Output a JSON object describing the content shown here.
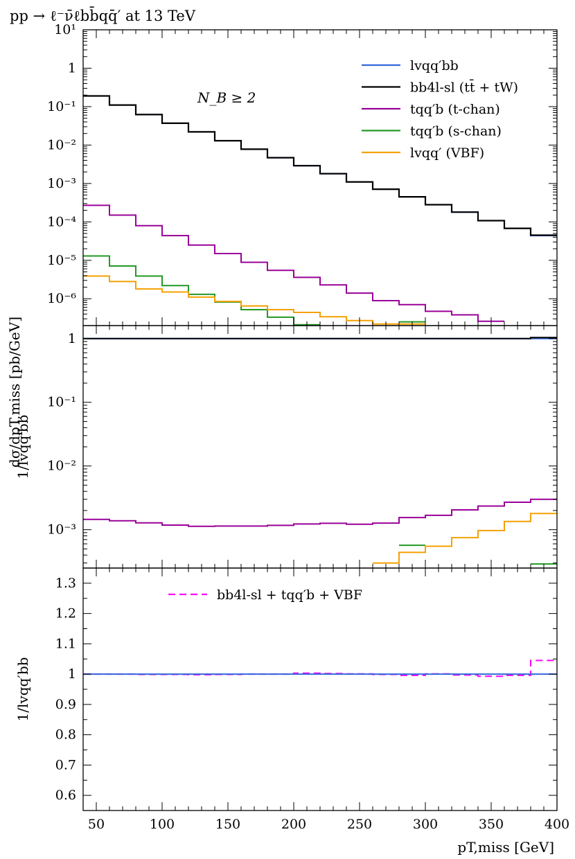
{
  "chart_data": [
    {
      "type": "line",
      "panel": "main",
      "title": "pp → ℓ⁻ν̄ℓbb̄qq̄′ at 13 TeV",
      "ylabel": "dσ/dpT,miss [pb/GeV]",
      "xlabel": "",
      "y_scale": "log",
      "ylim": [
        2e-07,
        10
      ],
      "xlim": [
        40,
        400
      ],
      "y_tick_labels": [
        "10¹",
        "1",
        "10⁻¹",
        "10⁻²",
        "10⁻³",
        "10⁻⁴",
        "10⁻⁵",
        "10⁻⁶"
      ],
      "y_tick_values": [
        10,
        1,
        0.1,
        0.01,
        0.001,
        0.0001,
        1e-05,
        1e-06
      ],
      "annotation": "N_B ≥ 2",
      "legend_position": "top-right",
      "bin_edges": [
        40,
        60,
        80,
        100,
        120,
        140,
        160,
        180,
        200,
        220,
        240,
        260,
        280,
        300,
        320,
        340,
        360,
        380,
        400
      ],
      "series": [
        {
          "name": "lvqq′bb",
          "color": "#3366dd",
          "values": [
            0.19,
            0.11,
            0.062,
            0.037,
            0.022,
            0.013,
            0.0078,
            0.0047,
            0.0029,
            0.0018,
            0.0011,
            0.00071,
            0.00045,
            0.00028,
            0.00018,
            0.000108,
            6.8e-05,
            4.4e-05
          ]
        },
        {
          "name": "bb4l-sl (tt̄ + tW)",
          "color": "#000000",
          "values": [
            0.19,
            0.11,
            0.062,
            0.037,
            0.022,
            0.013,
            0.0078,
            0.0047,
            0.0029,
            0.0018,
            0.0011,
            0.00071,
            0.00045,
            0.00028,
            0.00018,
            0.000108,
            6.8e-05,
            4.5e-05
          ]
        },
        {
          "name": "tqq′b (t-chan)",
          "color": "#990099",
          "values": [
            0.00027,
            0.00015,
            8e-05,
            4.4e-05,
            2.5e-05,
            1.5e-05,
            8.9e-06,
            5.5e-06,
            3.6e-06,
            2.3e-06,
            1.4e-06,
            8.9e-07,
            7e-07,
            4.7e-07,
            3.8e-07,
            2.6e-07,
            1.8e-07,
            null
          ]
        },
        {
          "name": "tqq′b (s-chan)",
          "color": "#229922",
          "values": [
            1.3e-05,
            7.1e-06,
            3.9e-06,
            2.2e-06,
            1.3e-06,
            8.2e-07,
            5.2e-07,
            3.3e-07,
            2.1e-07,
            null,
            null,
            null,
            2.5e-07,
            null,
            null,
            null,
            null,
            null
          ]
        },
        {
          "name": "lvqq′ (VBF)",
          "color": "#f5a000",
          "values": [
            3.9e-06,
            2.8e-06,
            1.8e-06,
            1.5e-06,
            1.1e-06,
            8.5e-07,
            6.5e-07,
            5.2e-07,
            4.4e-07,
            3.4e-07,
            2.7e-07,
            2.2e-07,
            2.2e-07,
            null,
            null,
            null,
            null,
            null
          ]
        }
      ]
    },
    {
      "type": "line",
      "panel": "ratio-log",
      "ylabel": "1/lvqq′bb",
      "y_scale": "log",
      "ylim": [
        0.00025,
        1.6
      ],
      "xlim": [
        40,
        400
      ],
      "y_tick_labels": [
        "1",
        "10⁻¹",
        "10⁻²",
        "10⁻³"
      ],
      "y_tick_values": [
        1,
        0.1,
        0.01,
        0.001
      ],
      "bin_edges": [
        40,
        60,
        80,
        100,
        120,
        140,
        160,
        180,
        200,
        220,
        240,
        260,
        280,
        300,
        320,
        340,
        360,
        380,
        400
      ],
      "series": [
        {
          "name": "lvqq′bb",
          "color": "#3366dd",
          "values": [
            1,
            1,
            1,
            1,
            1,
            1,
            1,
            1,
            1,
            1,
            1,
            1,
            1,
            1,
            1,
            1,
            1,
            1
          ]
        },
        {
          "name": "bb4l-sl (tt̄ + tW)",
          "color": "#000000",
          "values": [
            1,
            1,
            1,
            1,
            1,
            1,
            1,
            1,
            1,
            1,
            1,
            1,
            1,
            1,
            1,
            1,
            1,
            1.04
          ]
        },
        {
          "name": "tqq′b (t-chan)",
          "color": "#990099",
          "values": [
            0.00145,
            0.00138,
            0.00128,
            0.00118,
            0.00113,
            0.00114,
            0.00114,
            0.00117,
            0.00123,
            0.00126,
            0.00122,
            0.00127,
            0.00155,
            0.00168,
            0.00205,
            0.00235,
            0.0027,
            0.003
          ]
        },
        {
          "name": "tqq′b (s-chan)",
          "color": "#229922",
          "values": [
            null,
            null,
            null,
            null,
            null,
            null,
            null,
            null,
            null,
            null,
            null,
            null,
            0.00057,
            null,
            null,
            0.00021,
            0.00024,
            0.00029
          ]
        },
        {
          "name": "lvqq′ (VBF)",
          "color": "#f5a000",
          "values": [
            null,
            null,
            null,
            null,
            null,
            null,
            null,
            null,
            null,
            null,
            0.00023,
            0.0003,
            0.00044,
            0.00055,
            0.00075,
            0.00097,
            0.00135,
            0.0018
          ]
        }
      ]
    },
    {
      "type": "line",
      "panel": "ratio-linear",
      "ylabel": "1/lvqq′bb",
      "xlabel": "pT,miss [GeV]",
      "y_scale": "linear",
      "ylim": [
        0.55,
        1.35
      ],
      "xlim": [
        40,
        400
      ],
      "y_tick_labels": [
        "1.3",
        "1.2",
        "1.1",
        "1",
        "0.9",
        "0.8",
        "0.7",
        "0.6"
      ],
      "y_tick_values": [
        1.3,
        1.2,
        1.1,
        1.0,
        0.9,
        0.8,
        0.7,
        0.6
      ],
      "x_tick_labels": [
        "50",
        "100",
        "150",
        "200",
        "250",
        "300",
        "350",
        "400"
      ],
      "x_tick_values": [
        50,
        100,
        150,
        200,
        250,
        300,
        350,
        400
      ],
      "legend_position": "top-center",
      "bin_edges": [
        40,
        60,
        80,
        100,
        120,
        140,
        160,
        180,
        200,
        220,
        240,
        260,
        280,
        300,
        320,
        340,
        360,
        380,
        400
      ],
      "series": [
        {
          "name": "bb4l-sl + tqq′b + VBF",
          "color": "#ff00ff",
          "dashed": true,
          "values": [
            1.0,
            1.0,
            0.999,
            0.999,
            0.998,
            0.999,
            1.0,
            1.0,
            1.003,
            1.002,
            1.001,
            0.999,
            0.996,
            1.001,
            0.997,
            0.993,
            0.996,
            1.045
          ]
        },
        {
          "name": "lvqq′bb",
          "color": "#3366dd",
          "values": [
            1,
            1,
            1,
            1,
            1,
            1,
            1,
            1,
            1,
            1,
            1,
            1,
            1,
            1,
            1,
            1,
            1,
            1
          ]
        }
      ]
    }
  ]
}
